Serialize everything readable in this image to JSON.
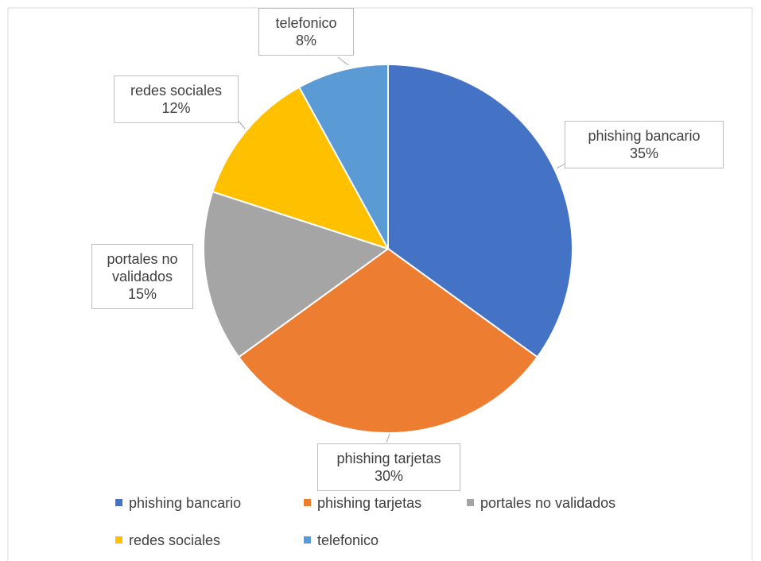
{
  "chart_data": {
    "type": "pie",
    "categories": [
      "phishing bancario",
      "phishing tarjetas",
      "portales no validados",
      "redes sociales",
      "telefonico"
    ],
    "values": [
      35,
      30,
      15,
      12,
      8
    ],
    "value_labels": [
      "35%",
      "30%",
      "15%",
      "12%",
      "8%"
    ],
    "colors": [
      "#4472c4",
      "#ed7d31",
      "#a5a5a5",
      "#ffc000",
      "#5b9bd5"
    ],
    "legend": "bottom"
  }
}
